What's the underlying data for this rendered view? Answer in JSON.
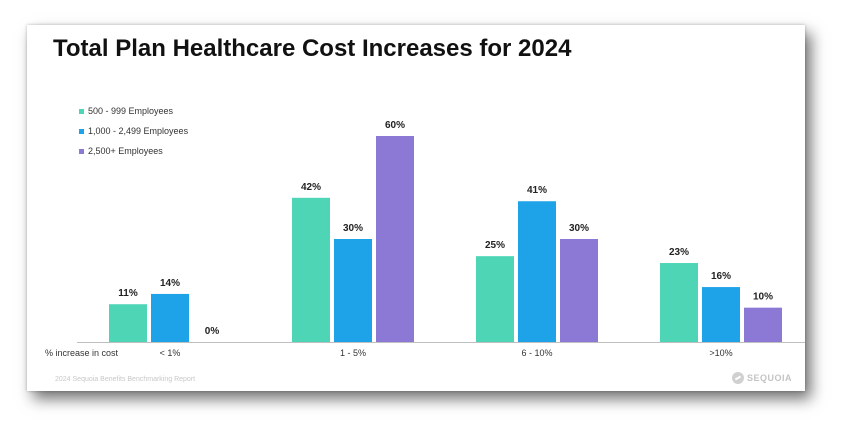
{
  "slide": {
    "title": "Total Plan Healthcare Cost Increases for 2024",
    "footer": "2024 Sequoia Benefits Benchmarking Report",
    "logo_text": "SEQUOIA"
  },
  "chart_data": {
    "type": "bar",
    "title": "Total Plan Healthcare Cost Increases for 2024",
    "xlabel": "% increase in cost",
    "ylabel": "",
    "categories": [
      "< 1%",
      "1 - 5%",
      "6 - 10%",
      ">10%"
    ],
    "series": [
      {
        "name": "500 - 999 Employees",
        "color": "#4dd5b6",
        "values": [
          11,
          42,
          25,
          23
        ]
      },
      {
        "name": "1,000 - 2,499 Employees",
        "color": "#1fa3e8",
        "values": [
          14,
          30,
          41,
          16
        ]
      },
      {
        "name": "2,500+ Employees",
        "color": "#8c79d6",
        "values": [
          0,
          60,
          30,
          10
        ]
      }
    ],
    "value_suffix": "%",
    "ylim": [
      0,
      60
    ],
    "grid": false,
    "legend_position": "top-left"
  }
}
